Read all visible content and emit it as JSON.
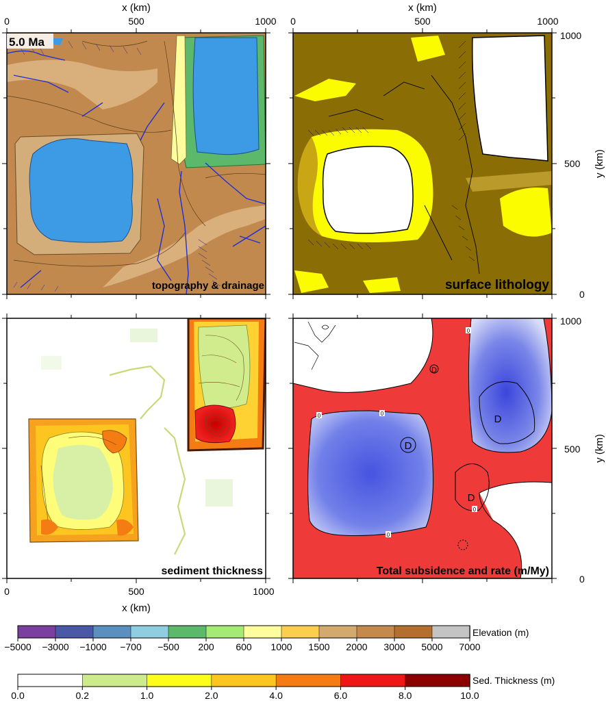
{
  "panels": {
    "top_left": {
      "age": "5.0 Ma",
      "title": "topography & drainage"
    },
    "top_right": {
      "title": "surface lithology"
    },
    "bottom_left": {
      "title": "sediment thickness"
    },
    "bottom_right": {
      "title": "Total subsidence  and rate (m/My)"
    }
  },
  "axes": {
    "x_label": "x (km)",
    "y_label": "y (km)",
    "x_ticks": [
      "0",
      "500",
      "1000"
    ],
    "y_ticks": [
      "0",
      "500",
      "1000"
    ]
  },
  "contour_labels": {
    "zero": "0",
    "depression": "D"
  },
  "legend_elevation": {
    "label": "Elevation (m)",
    "ticks": [
      "-5000",
      "-3000",
      "-1000",
      "-700",
      "-500",
      "200",
      "600",
      "1000",
      "1500",
      "2000",
      "3000",
      "5000",
      "7000"
    ],
    "colors": [
      "#7b3fa0",
      "#4a58a8",
      "#5b8fbf",
      "#8fcde0",
      "#5cb86a",
      "#a6ea76",
      "#fdfd9e",
      "#fbce4f",
      "#d2aa6e",
      "#c5894e",
      "#b46e2e",
      "#c4c4c4"
    ]
  },
  "legend_sediment": {
    "label": "Sed. Thickness (m)",
    "ticks": [
      "0.0",
      "0.2",
      "1.0",
      "2.0",
      "4.0",
      "6.0",
      "8.0",
      "10.0"
    ],
    "colors": [
      "#ffffff",
      "#cbeb8c",
      "#fdfd1c",
      "#fcc51f",
      "#f47c12",
      "#ee1616",
      "#8b0000"
    ]
  },
  "colors": {
    "water": "#3d9be6",
    "river": "#1f2fd6",
    "topo_base": "#c1894e",
    "topo_light": "#d9b07c",
    "lith_dark": "#8b6d06",
    "lith_yellow": "#fcfc00",
    "subsidence_red": "#ef3a3a",
    "subsidence_blue": "#6b77e6"
  }
}
